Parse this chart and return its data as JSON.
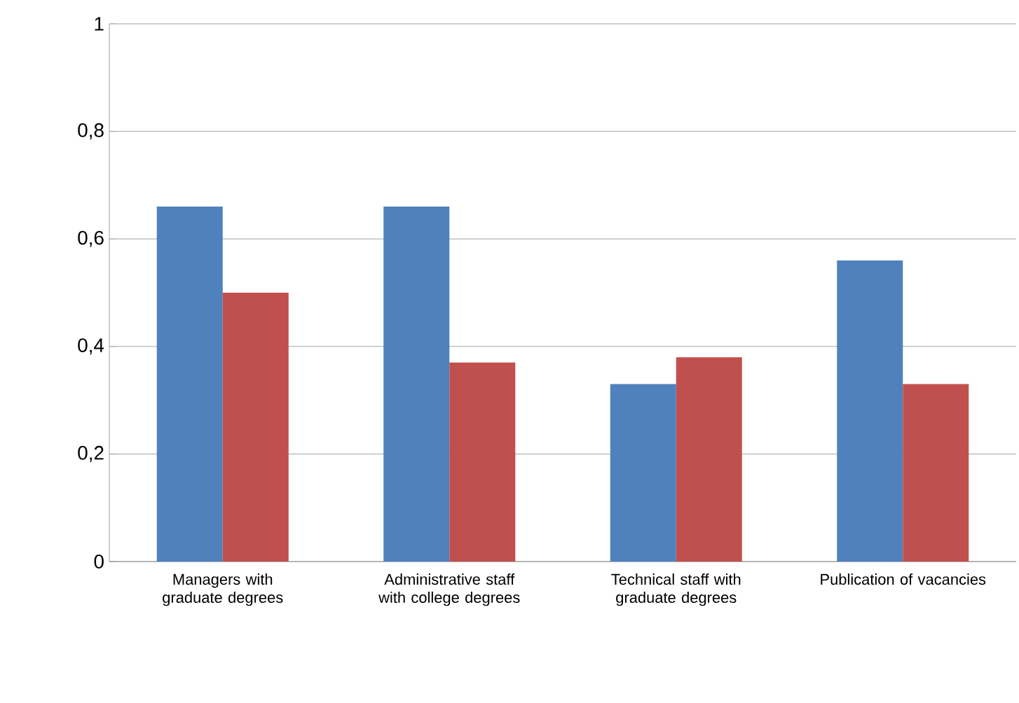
{
  "chart_data": {
    "type": "bar",
    "categories": [
      "Managers with graduate degrees",
      "Administrative staff with college degrees",
      "Technical staff with graduate degrees",
      "Publication of vacancies"
    ],
    "series": [
      {
        "color": "#4f81bd",
        "values": [
          0.66,
          0.66,
          0.33,
          0.56
        ]
      },
      {
        "color": "#c0504d",
        "values": [
          0.5,
          0.37,
          0.38,
          0.33
        ]
      }
    ],
    "ylim": [
      0,
      1
    ],
    "yticks": [
      0,
      {
        "value": 0.2,
        "label": "0,2"
      },
      {
        "value": 0.4,
        "label": "0,4"
      },
      {
        "value": 0.6,
        "label": "0,6"
      },
      {
        "value": 0.8,
        "label": "0,8"
      },
      1
    ],
    "grid": "y"
  }
}
